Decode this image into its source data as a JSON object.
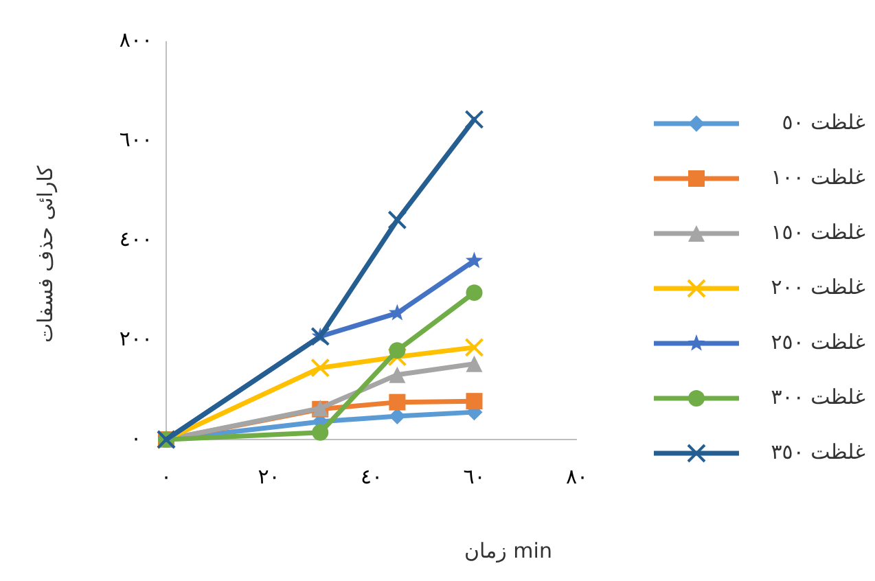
{
  "chart_data": {
    "type": "line",
    "xlabel": "زمان min",
    "ylabel": "کارائی حذف فسفات",
    "x": [
      0,
      30,
      45,
      60
    ],
    "xlim": [
      0,
      80
    ],
    "xticks": [
      {
        "value": 0,
        "label": "٠"
      },
      {
        "value": 20,
        "label": "٢٠"
      },
      {
        "value": 40,
        "label": "٤٠"
      },
      {
        "value": 60,
        "label": "٦٠"
      },
      {
        "value": 80,
        "label": "٨٠"
      }
    ],
    "ylim": [
      0,
      800
    ],
    "yticks": [
      {
        "value": 0,
        "label": "٠"
      },
      {
        "value": 200,
        "label": "٢٠٠"
      },
      {
        "value": 400,
        "label": "٤٠٠"
      },
      {
        "value": 600,
        "label": "٦٠٠"
      },
      {
        "value": 800,
        "label": "٨٠٠"
      }
    ],
    "grid": false,
    "legend": "right",
    "line_style": "solid",
    "series": [
      {
        "name": "غلظت ٥٠",
        "color": "#5b9bd5",
        "marker": "diamond",
        "values": [
          0,
          36,
          47,
          55
        ]
      },
      {
        "name": "غلظت ١٠٠",
        "color": "#ed7d31",
        "marker": "square",
        "values": [
          0,
          61,
          75,
          77
        ]
      },
      {
        "name": "غلظت ١٥٠",
        "color": "#a5a5a5",
        "marker": "triangle",
        "values": [
          0,
          63,
          130,
          152
        ]
      },
      {
        "name": "غلظت ٢٠٠",
        "color": "#ffc000",
        "marker": "cross",
        "values": [
          0,
          144,
          166,
          185
        ]
      },
      {
        "name": "غلظت ٢٥٠",
        "color": "#4472c4",
        "marker": "star",
        "values": [
          0,
          207,
          254,
          359
        ]
      },
      {
        "name": "غلظت ٣٠٠",
        "color": "#70ad47",
        "marker": "circle",
        "values": [
          0,
          14,
          179,
          295
        ]
      },
      {
        "name": "غلظت ٣٥٠",
        "color": "#255e91",
        "marker": "cross",
        "values": [
          0,
          207,
          441,
          643
        ]
      }
    ]
  }
}
